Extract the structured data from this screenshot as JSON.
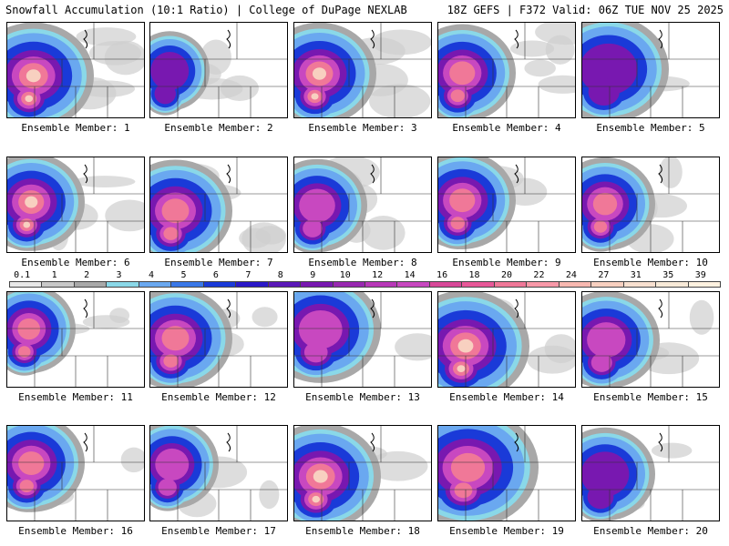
{
  "header": {
    "left": "Snowfall Accumulation (10:1 Ratio) | College of DuPage NEXLAB",
    "right": "18Z GEFS | F372 Valid: 06Z TUE NOV 25 2025"
  },
  "members": [
    {
      "label": "Ensemble Member: 1",
      "intensity": 0.95,
      "extent": 0.55
    },
    {
      "label": "Ensemble Member: 2",
      "intensity": 0.55,
      "extent": 0.25
    },
    {
      "label": "Ensemble Member: 3",
      "intensity": 0.9,
      "extent": 0.5
    },
    {
      "label": "Ensemble Member: 4",
      "intensity": 0.75,
      "extent": 0.45
    },
    {
      "label": "Ensemble Member: 5",
      "intensity": 0.5,
      "extent": 0.55
    },
    {
      "label": "Ensemble Member: 6",
      "intensity": 0.85,
      "extent": 0.45
    },
    {
      "label": "Ensemble Member: 7",
      "intensity": 0.7,
      "extent": 0.5
    },
    {
      "label": "Ensemble Member: 8",
      "intensity": 0.65,
      "extent": 0.4
    },
    {
      "label": "Ensemble Member: 9",
      "intensity": 0.75,
      "extent": 0.45
    },
    {
      "label": "Ensemble Member: 10",
      "intensity": 0.8,
      "extent": 0.4
    },
    {
      "label": "Ensemble Member: 11",
      "intensity": 0.7,
      "extent": 0.35
    },
    {
      "label": "Ensemble Member: 12",
      "intensity": 0.7,
      "extent": 0.5
    },
    {
      "label": "Ensemble Member: 13",
      "intensity": 0.65,
      "extent": 0.55
    },
    {
      "label": "Ensemble Member: 14",
      "intensity": 0.9,
      "extent": 0.6
    },
    {
      "label": "Ensemble Member: 15",
      "intensity": 0.6,
      "extent": 0.45
    },
    {
      "label": "Ensemble Member: 16",
      "intensity": 0.7,
      "extent": 0.45
    },
    {
      "label": "Ensemble Member: 17",
      "intensity": 0.6,
      "extent": 0.35
    },
    {
      "label": "Ensemble Member: 18",
      "intensity": 0.85,
      "extent": 0.55
    },
    {
      "label": "Ensemble Member: 19",
      "intensity": 0.8,
      "extent": 0.7
    },
    {
      "label": "Ensemble Member: 20",
      "intensity": 0.55,
      "extent": 0.4
    }
  ],
  "colorbar": {
    "labels": [
      "0.1",
      "1",
      "2",
      "3",
      "4",
      "5",
      "6",
      "7",
      "8",
      "9",
      "10",
      "12",
      "14",
      "16",
      "18",
      "20",
      "22",
      "24",
      "27",
      "31",
      "35",
      "39"
    ],
    "colors": [
      "#e8e8e8",
      "#c8c8c8",
      "#a8a8a8",
      "#8ad8e8",
      "#6aa8f0",
      "#3a78e8",
      "#1a3ad8",
      "#2a18c8",
      "#5a18b8",
      "#7818b0",
      "#9828b0",
      "#b838b8",
      "#c848c0",
      "#d84898",
      "#e85898",
      "#f07898",
      "#f898a8",
      "#f8b8b0",
      "#f8d0c0",
      "#f8e0d0",
      "#f8ead8",
      "#fff2e0"
    ]
  }
}
